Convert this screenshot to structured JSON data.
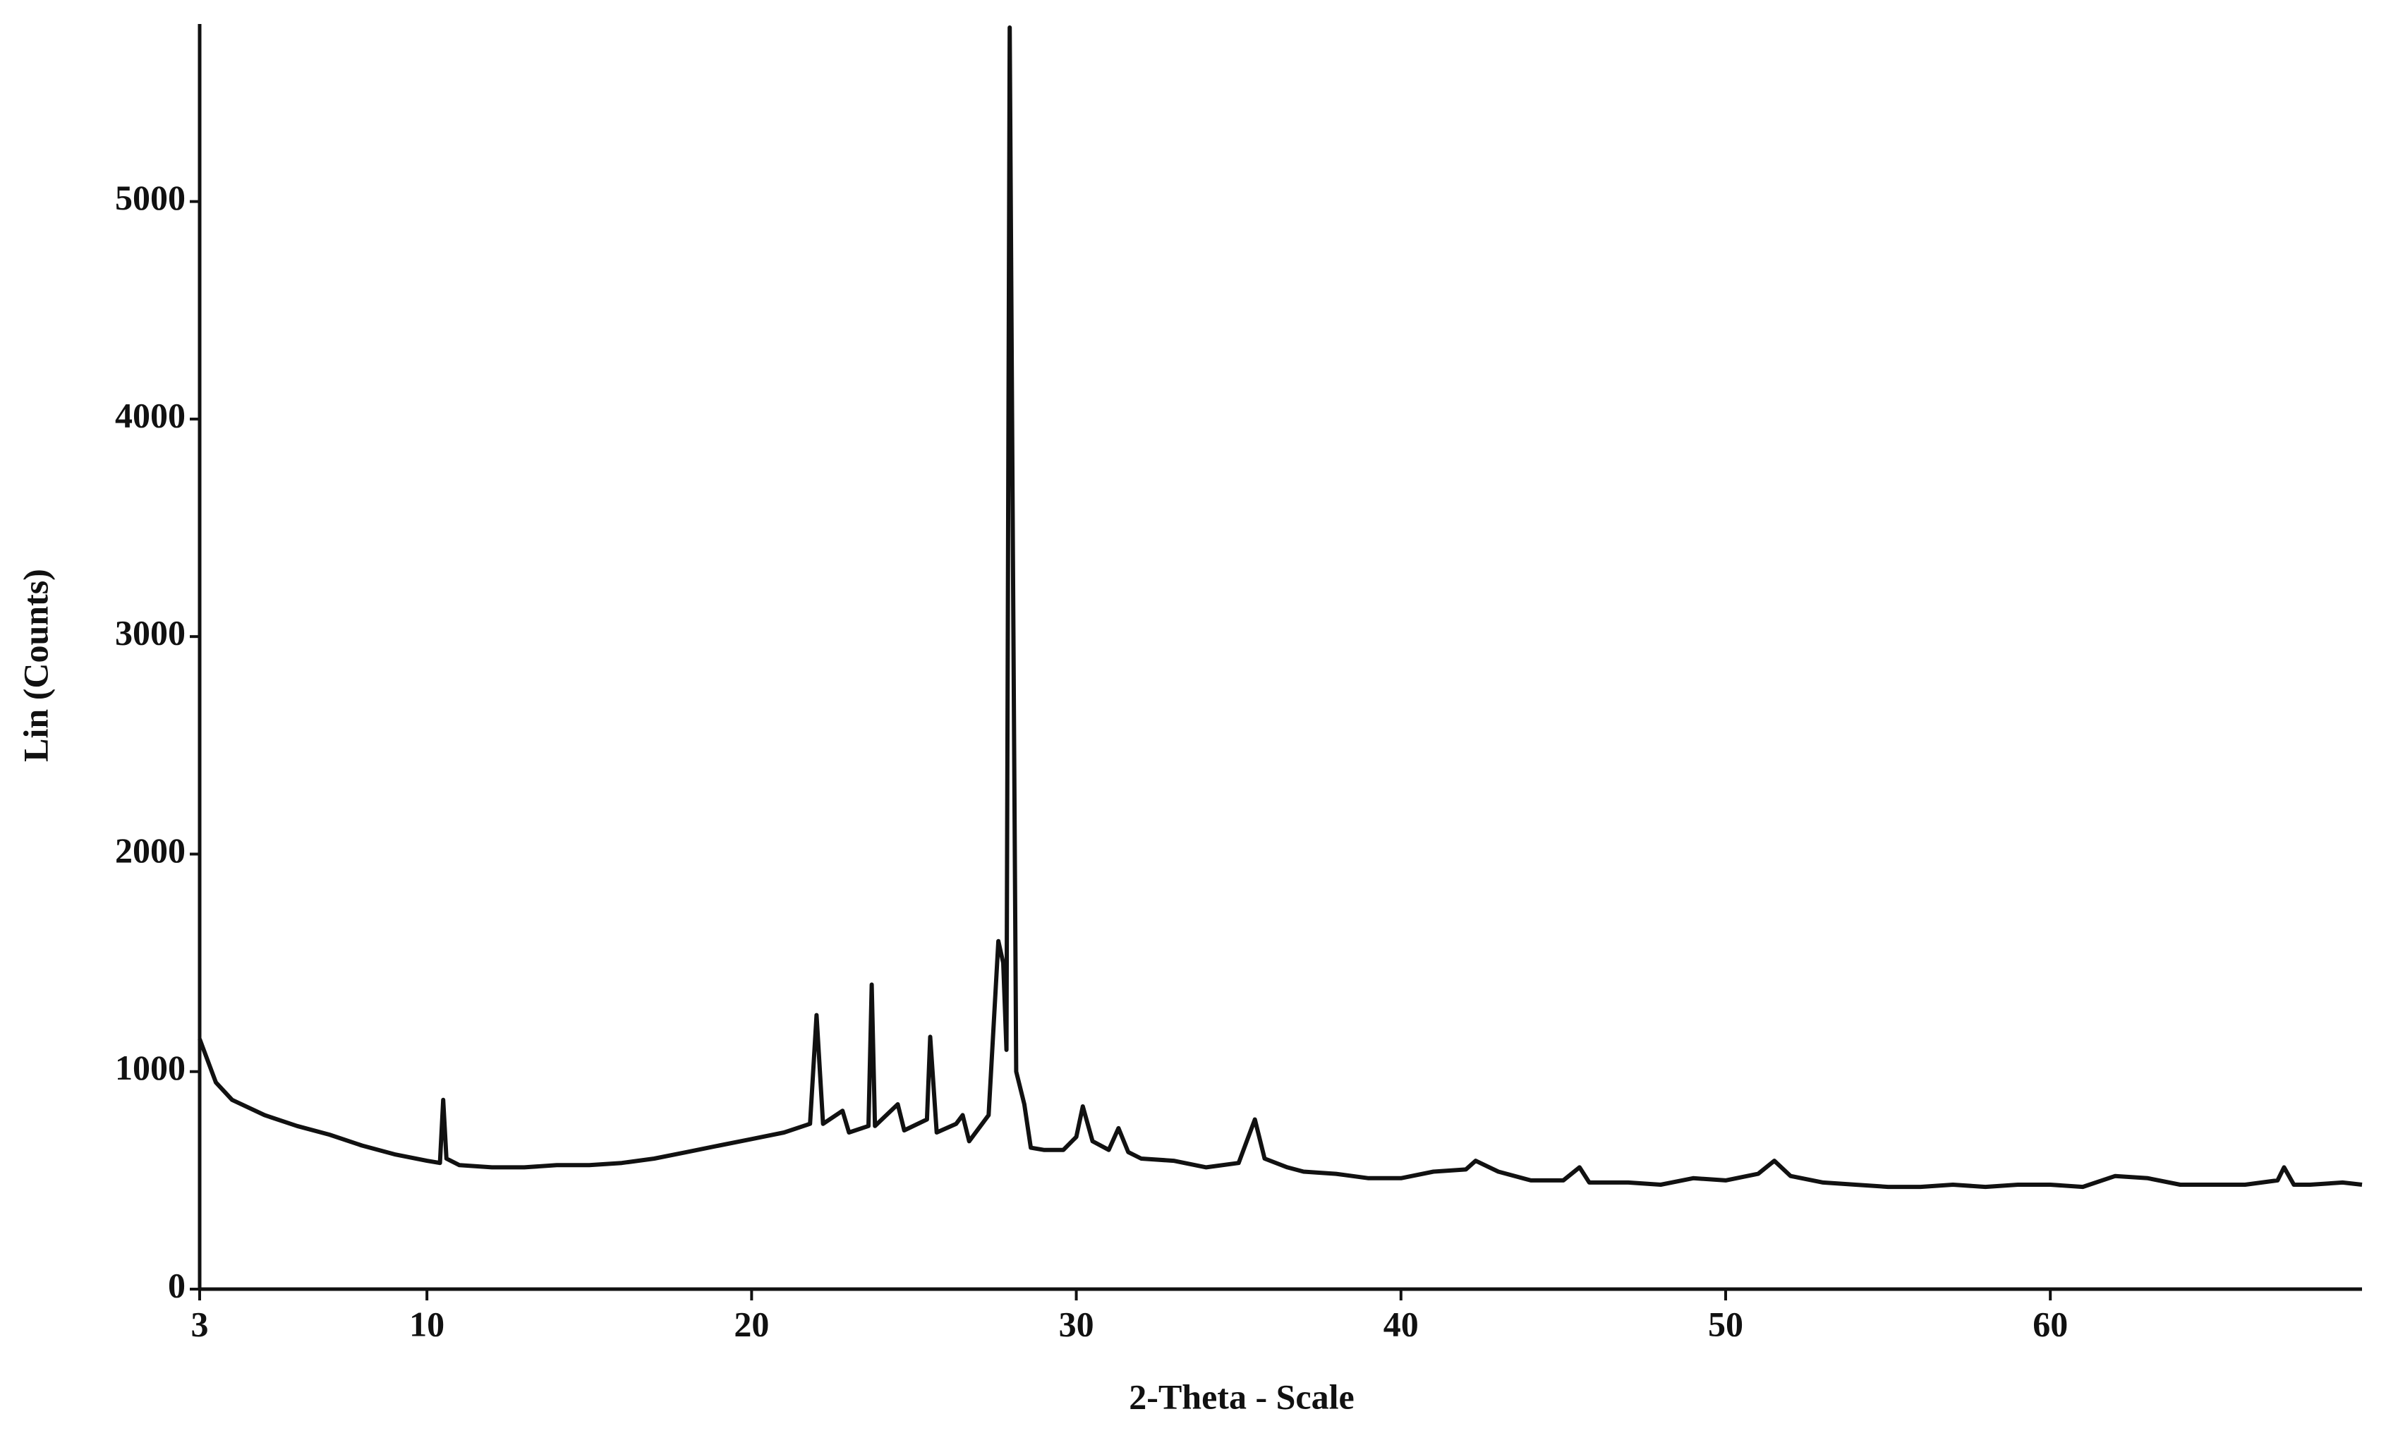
{
  "chart_data": {
    "type": "line",
    "x_label": "2-Theta - Scale",
    "y_label": "Lin (Counts)",
    "xlim": [
      3,
      69.6
    ],
    "ylim": [
      0,
      5800
    ],
    "xticks": [
      3,
      10,
      20,
      30,
      40,
      50,
      60
    ],
    "yticks": [
      0,
      1000,
      2000,
      3000,
      4000,
      5000
    ],
    "grid": false,
    "series": [
      {
        "color": "#111111",
        "x": [
          3,
          3.5,
          4,
          5,
          6,
          7,
          8,
          9,
          10,
          10.4,
          10.5,
          10.6,
          11,
          12,
          13,
          14,
          15,
          16,
          17,
          18,
          19,
          20,
          21,
          21.8,
          22,
          22.2,
          22.8,
          23,
          23.6,
          23.7,
          23.8,
          24.5,
          24.7,
          25.4,
          25.5,
          25.7,
          26.3,
          26.5,
          26.7,
          27.3,
          27.6,
          27.75,
          27.85,
          27.95,
          28.05,
          28.15,
          28.4,
          28.6,
          29,
          29.6,
          30,
          30.2,
          30.5,
          31,
          31.3,
          31.6,
          32,
          33,
          34,
          35,
          35.5,
          35.8,
          36.5,
          37,
          38,
          39,
          40,
          41,
          42,
          42.3,
          43,
          44,
          45,
          45.5,
          45.8,
          47,
          48,
          49,
          50,
          51,
          51.5,
          52,
          53,
          54,
          55,
          56,
          57,
          58,
          59,
          60,
          61,
          62,
          63,
          64,
          65,
          66,
          67,
          67.2,
          67.5,
          68,
          69,
          69.6
        ],
        "values": [
          1150,
          950,
          870,
          800,
          750,
          710,
          660,
          620,
          590,
          580,
          870,
          600,
          570,
          560,
          560,
          570,
          570,
          580,
          600,
          630,
          660,
          690,
          720,
          760,
          1260,
          760,
          820,
          720,
          750,
          1400,
          750,
          850,
          730,
          780,
          1160,
          720,
          760,
          800,
          680,
          800,
          1600,
          1500,
          1100,
          5800,
          3350,
          1000,
          850,
          650,
          640,
          640,
          700,
          840,
          680,
          640,
          740,
          630,
          600,
          590,
          560,
          580,
          780,
          600,
          560,
          540,
          530,
          510,
          510,
          540,
          550,
          590,
          540,
          500,
          500,
          560,
          490,
          490,
          480,
          510,
          500,
          530,
          590,
          520,
          490,
          480,
          470,
          470,
          480,
          470,
          480,
          480,
          470,
          520,
          510,
          480,
          480,
          480,
          500,
          560,
          480,
          480,
          490,
          480
        ]
      }
    ]
  }
}
